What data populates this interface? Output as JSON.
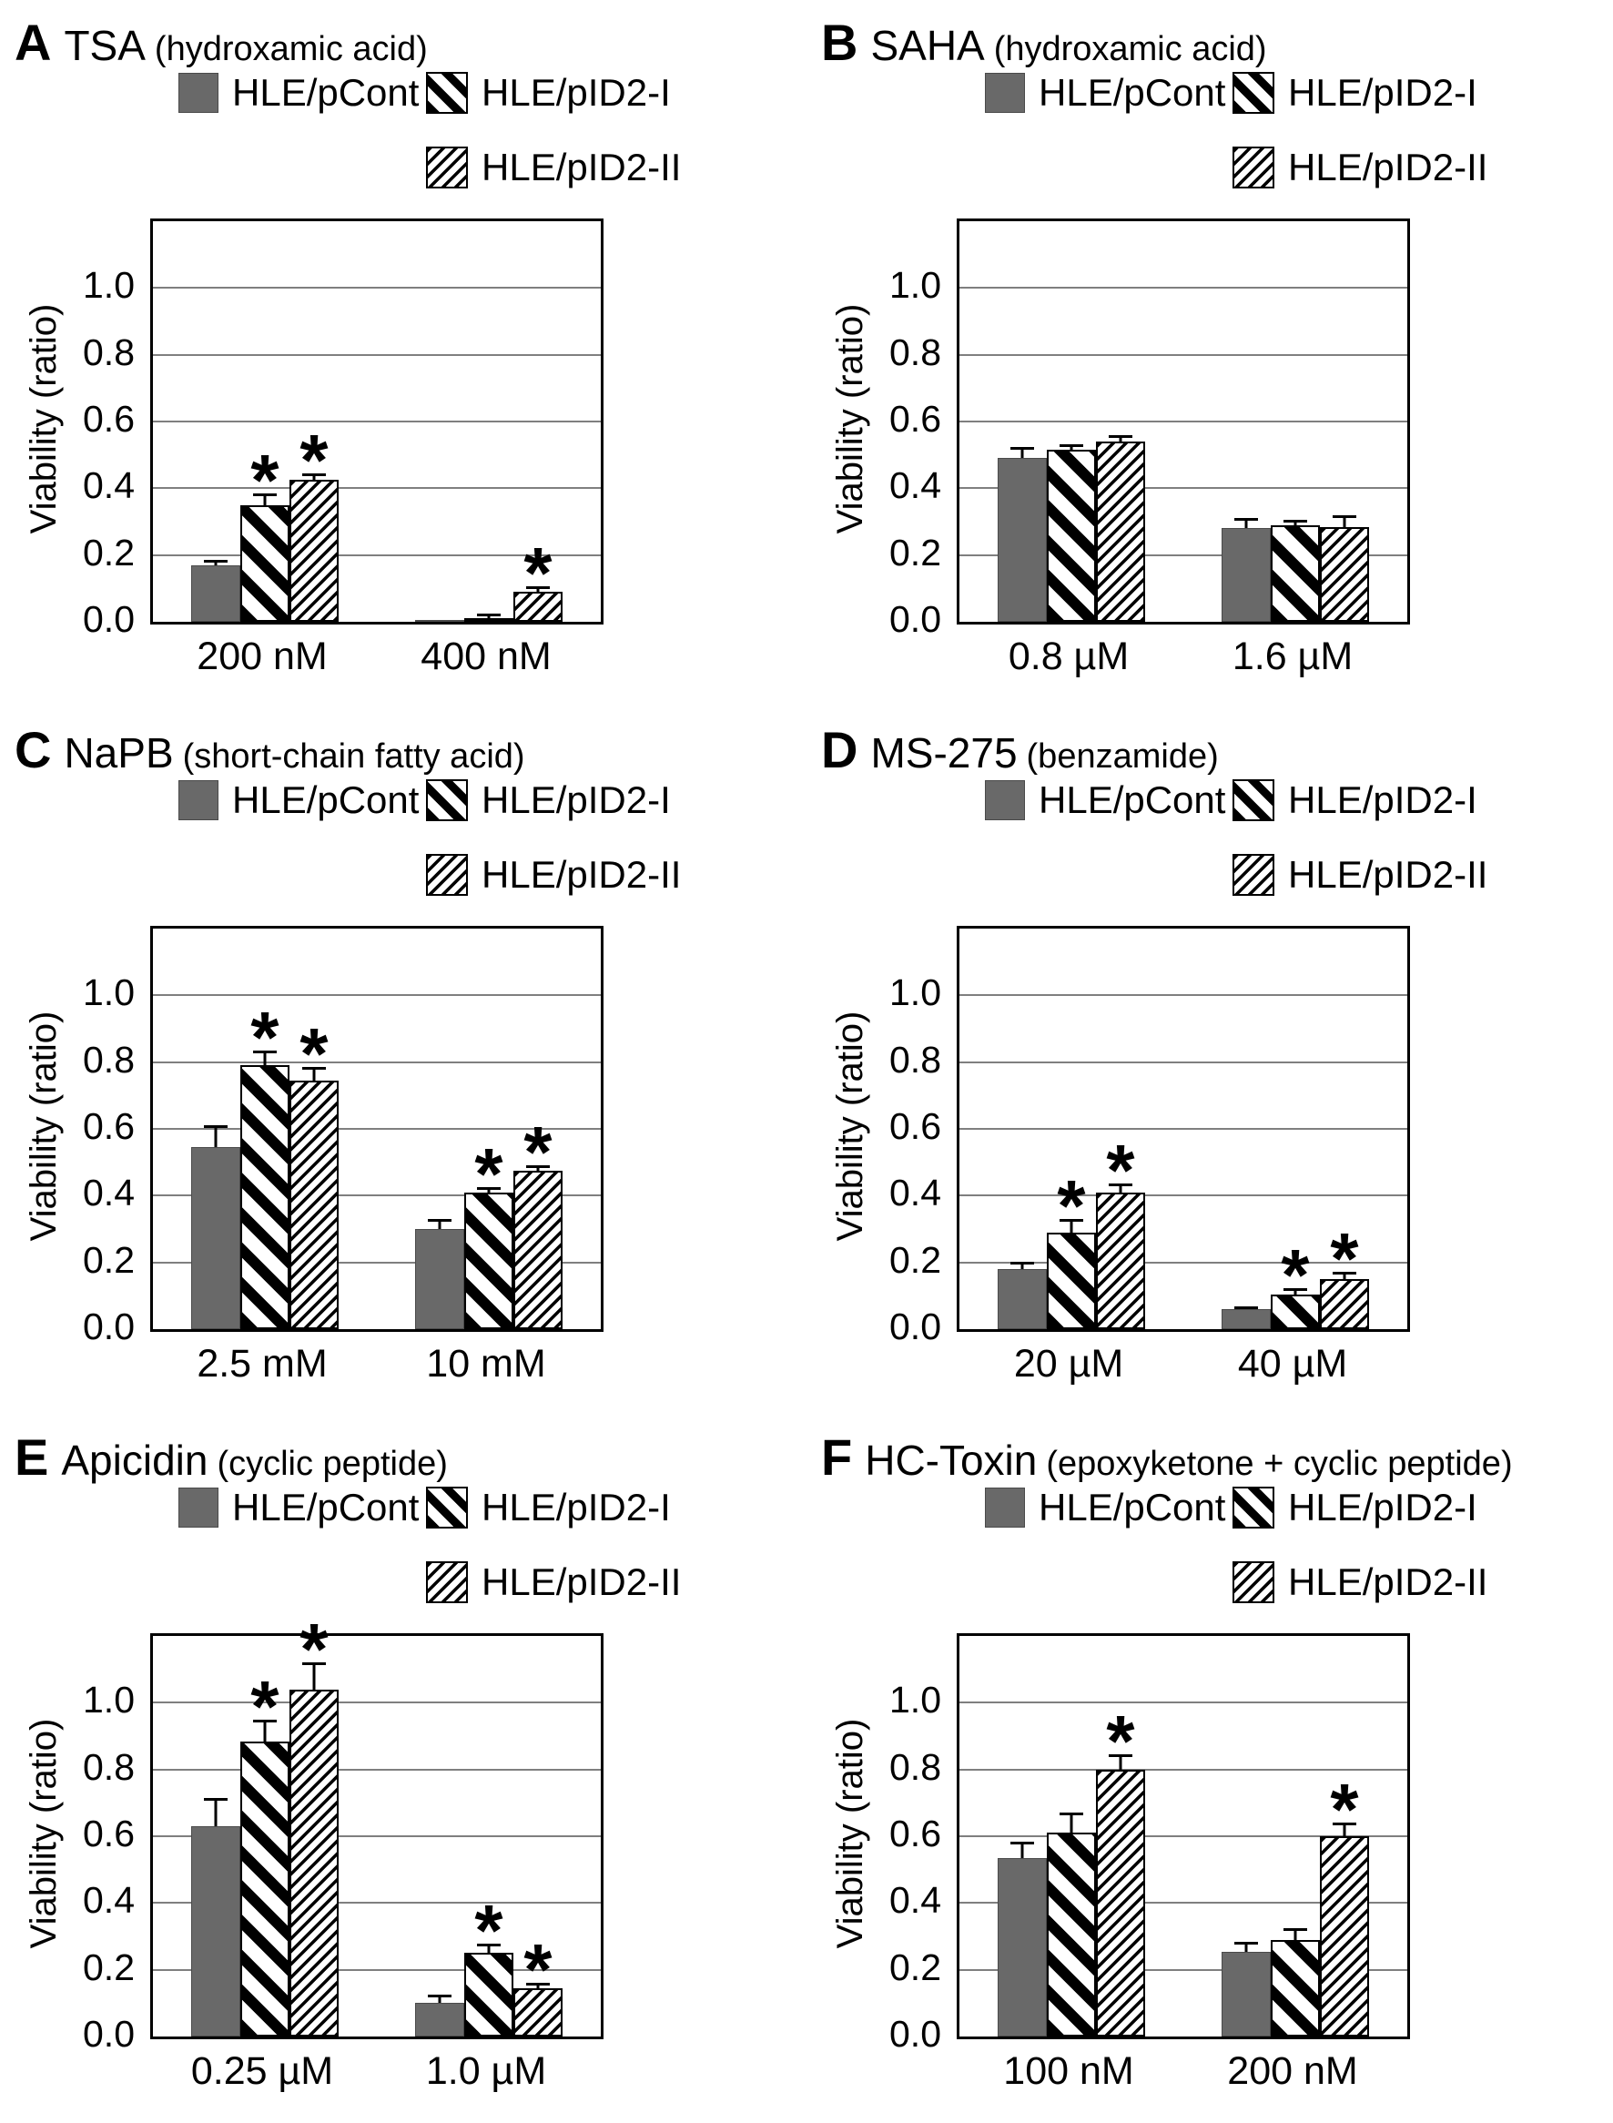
{
  "figure": {
    "y_axis_label": "Viability (ratio)",
    "series_labels": [
      "HLE/pCont",
      "HLE/pID2-I",
      "HLE/pID2-II"
    ],
    "significance_marker": "*",
    "colors": {
      "bar_gray": "#696969",
      "grid_gray": "#7f7f7f",
      "ink": "#000000"
    }
  },
  "chart_data": [
    {
      "type": "bar",
      "panel": "A",
      "title": "TSA",
      "subtitle": "(hydroxamic acid)",
      "ylabel": "Viability (ratio)",
      "ylim": [
        0,
        1.2
      ],
      "yticks": [
        0,
        0.2,
        0.4,
        0.6,
        0.8,
        1.0
      ],
      "grid": true,
      "legend_position": "top",
      "categories": [
        "200 nM",
        "400 nM"
      ],
      "series": [
        {
          "name": "HLE/pCont",
          "values": [
            0.17,
            0.005
          ],
          "errors": [
            0.015,
            0
          ],
          "significant": [
            false,
            false
          ]
        },
        {
          "name": "HLE/pID2-I",
          "values": [
            0.35,
            0.012
          ],
          "errors": [
            0.035,
            0.012
          ],
          "significant": [
            true,
            false
          ]
        },
        {
          "name": "HLE/pID2-II",
          "values": [
            0.425,
            0.09
          ],
          "errors": [
            0.02,
            0.016
          ],
          "significant": [
            true,
            true
          ]
        }
      ]
    },
    {
      "type": "bar",
      "panel": "B",
      "title": "SAHA",
      "subtitle": "(hydroxamic acid)",
      "ylabel": "Viability (ratio)",
      "ylim": [
        0,
        1.2
      ],
      "yticks": [
        0,
        0.2,
        0.4,
        0.6,
        0.8,
        1.0
      ],
      "grid": true,
      "legend_position": "top",
      "categories": [
        "0.8 µM",
        "1.6 µM"
      ],
      "series": [
        {
          "name": "HLE/pCont",
          "values": [
            0.49,
            0.28
          ],
          "errors": [
            0.035,
            0.032
          ],
          "significant": [
            false,
            false
          ]
        },
        {
          "name": "HLE/pID2-I",
          "values": [
            0.515,
            0.29
          ],
          "errors": [
            0.018,
            0.016
          ],
          "significant": [
            false,
            false
          ]
        },
        {
          "name": "HLE/pID2-II",
          "values": [
            0.54,
            0.285
          ],
          "errors": [
            0.018,
            0.035
          ],
          "significant": [
            false,
            false
          ]
        }
      ]
    },
    {
      "type": "bar",
      "panel": "C",
      "title": "NaPB",
      "subtitle": "(short-chain fatty acid)",
      "ylabel": "Viability (ratio)",
      "ylim": [
        0,
        1.2
      ],
      "yticks": [
        0,
        0.2,
        0.4,
        0.6,
        0.8,
        1.0
      ],
      "grid": true,
      "legend_position": "top",
      "categories": [
        "2.5 mM",
        "10 mM"
      ],
      "series": [
        {
          "name": "HLE/pCont",
          "values": [
            0.545,
            0.3
          ],
          "errors": [
            0.065,
            0.03
          ],
          "significant": [
            false,
            false
          ]
        },
        {
          "name": "HLE/pID2-I",
          "values": [
            0.79,
            0.41
          ],
          "errors": [
            0.045,
            0.015
          ],
          "significant": [
            true,
            true
          ]
        },
        {
          "name": "HLE/pID2-II",
          "values": [
            0.745,
            0.475
          ],
          "errors": [
            0.04,
            0.015
          ],
          "significant": [
            true,
            true
          ]
        }
      ]
    },
    {
      "type": "bar",
      "panel": "D",
      "title": "MS-275",
      "subtitle": "(benzamide)",
      "ylabel": "Viability (ratio)",
      "ylim": [
        0,
        1.2
      ],
      "yticks": [
        0,
        0.2,
        0.4,
        0.6,
        0.8,
        1.0
      ],
      "grid": true,
      "legend_position": "top",
      "categories": [
        "20 µM",
        "40 µM"
      ],
      "series": [
        {
          "name": "HLE/pCont",
          "values": [
            0.18,
            0.06
          ],
          "errors": [
            0.022,
            0.008
          ],
          "significant": [
            false,
            false
          ]
        },
        {
          "name": "HLE/pID2-I",
          "values": [
            0.29,
            0.105
          ],
          "errors": [
            0.04,
            0.018
          ],
          "significant": [
            true,
            true
          ]
        },
        {
          "name": "HLE/pID2-II",
          "values": [
            0.41,
            0.15
          ],
          "errors": [
            0.026,
            0.023
          ],
          "significant": [
            true,
            true
          ]
        }
      ]
    },
    {
      "type": "bar",
      "panel": "E",
      "title": "Apicidin",
      "subtitle": "(cyclic peptide)",
      "ylabel": "Viability (ratio)",
      "ylim": [
        0,
        1.2
      ],
      "yticks": [
        0,
        0.2,
        0.4,
        0.6,
        0.8,
        1.0
      ],
      "grid": true,
      "legend_position": "top",
      "categories": [
        "0.25 µM",
        "1.0 µM"
      ],
      "series": [
        {
          "name": "HLE/pCont",
          "values": [
            0.63,
            0.1
          ],
          "errors": [
            0.085,
            0.025
          ],
          "significant": [
            false,
            false
          ]
        },
        {
          "name": "HLE/pID2-I",
          "values": [
            0.885,
            0.25
          ],
          "errors": [
            0.065,
            0.028
          ],
          "significant": [
            true,
            true
          ]
        },
        {
          "name": "HLE/pID2-II",
          "values": [
            1.04,
            0.145
          ],
          "errors": [
            0.08,
            0.016
          ],
          "significant": [
            true,
            true
          ]
        }
      ]
    },
    {
      "type": "bar",
      "panel": "F",
      "title": "HC-Toxin",
      "subtitle": "(epoxyketone + cyclic peptide)",
      "ylabel": "Viability (ratio)",
      "ylim": [
        0,
        1.2
      ],
      "yticks": [
        0,
        0.2,
        0.4,
        0.6,
        0.8,
        1.0
      ],
      "grid": true,
      "legend_position": "top",
      "categories": [
        "100 nM",
        "200 nM"
      ],
      "series": [
        {
          "name": "HLE/pCont",
          "values": [
            0.535,
            0.255
          ],
          "errors": [
            0.05,
            0.03
          ],
          "significant": [
            false,
            false
          ]
        },
        {
          "name": "HLE/pID2-I",
          "values": [
            0.61,
            0.29
          ],
          "errors": [
            0.06,
            0.035
          ],
          "significant": [
            false,
            false
          ]
        },
        {
          "name": "HLE/pID2-II",
          "values": [
            0.8,
            0.6
          ],
          "errors": [
            0.045,
            0.04
          ],
          "significant": [
            true,
            true
          ]
        }
      ]
    }
  ]
}
